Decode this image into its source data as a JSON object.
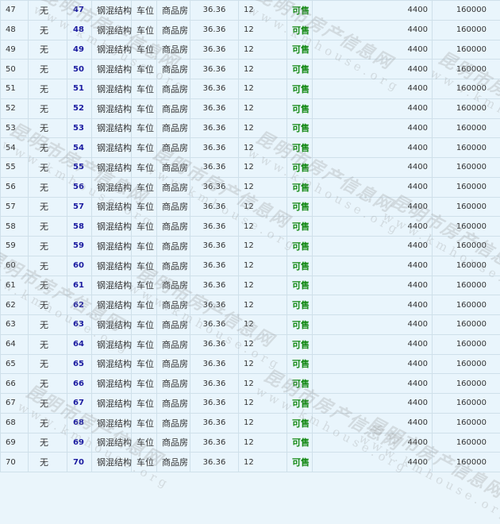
{
  "table": {
    "rows": [
      {
        "no": "47",
        "floor": "无",
        "room": "47",
        "structure": "钢混结构",
        "type": "车位",
        "usage": "商品房",
        "area": "36.36",
        "height": "12",
        "status": "可售",
        "price": "4400",
        "total": "160000"
      },
      {
        "no": "48",
        "floor": "无",
        "room": "48",
        "structure": "钢混结构",
        "type": "车位",
        "usage": "商品房",
        "area": "36.36",
        "height": "12",
        "status": "可售",
        "price": "4400",
        "total": "160000"
      },
      {
        "no": "49",
        "floor": "无",
        "room": "49",
        "structure": "钢混结构",
        "type": "车位",
        "usage": "商品房",
        "area": "36.36",
        "height": "12",
        "status": "可售",
        "price": "4400",
        "total": "160000"
      },
      {
        "no": "50",
        "floor": "无",
        "room": "50",
        "structure": "钢混结构",
        "type": "车位",
        "usage": "商品房",
        "area": "36.36",
        "height": "12",
        "status": "可售",
        "price": "4400",
        "total": "160000"
      },
      {
        "no": "51",
        "floor": "无",
        "room": "51",
        "structure": "钢混结构",
        "type": "车位",
        "usage": "商品房",
        "area": "36.36",
        "height": "12",
        "status": "可售",
        "price": "4400",
        "total": "160000"
      },
      {
        "no": "52",
        "floor": "无",
        "room": "52",
        "structure": "钢混结构",
        "type": "车位",
        "usage": "商品房",
        "area": "36.36",
        "height": "12",
        "status": "可售",
        "price": "4400",
        "total": "160000"
      },
      {
        "no": "53",
        "floor": "无",
        "room": "53",
        "structure": "钢混结构",
        "type": "车位",
        "usage": "商品房",
        "area": "36.36",
        "height": "12",
        "status": "可售",
        "price": "4400",
        "total": "160000"
      },
      {
        "no": "54",
        "floor": "无",
        "room": "54",
        "structure": "钢混结构",
        "type": "车位",
        "usage": "商品房",
        "area": "36.36",
        "height": "12",
        "status": "可售",
        "price": "4400",
        "total": "160000"
      },
      {
        "no": "55",
        "floor": "无",
        "room": "55",
        "structure": "钢混结构",
        "type": "车位",
        "usage": "商品房",
        "area": "36.36",
        "height": "12",
        "status": "可售",
        "price": "4400",
        "total": "160000"
      },
      {
        "no": "56",
        "floor": "无",
        "room": "56",
        "structure": "钢混结构",
        "type": "车位",
        "usage": "商品房",
        "area": "36.36",
        "height": "12",
        "status": "可售",
        "price": "4400",
        "total": "160000"
      },
      {
        "no": "57",
        "floor": "无",
        "room": "57",
        "structure": "钢混结构",
        "type": "车位",
        "usage": "商品房",
        "area": "36.36",
        "height": "12",
        "status": "可售",
        "price": "4400",
        "total": "160000"
      },
      {
        "no": "58",
        "floor": "无",
        "room": "58",
        "structure": "钢混结构",
        "type": "车位",
        "usage": "商品房",
        "area": "36.36",
        "height": "12",
        "status": "可售",
        "price": "4400",
        "total": "160000"
      },
      {
        "no": "59",
        "floor": "无",
        "room": "59",
        "structure": "钢混结构",
        "type": "车位",
        "usage": "商品房",
        "area": "36.36",
        "height": "12",
        "status": "可售",
        "price": "4400",
        "total": "160000"
      },
      {
        "no": "60",
        "floor": "无",
        "room": "60",
        "structure": "钢混结构",
        "type": "车位",
        "usage": "商品房",
        "area": "36.36",
        "height": "12",
        "status": "可售",
        "price": "4400",
        "total": "160000"
      },
      {
        "no": "61",
        "floor": "无",
        "room": "61",
        "structure": "钢混结构",
        "type": "车位",
        "usage": "商品房",
        "area": "36.36",
        "height": "12",
        "status": "可售",
        "price": "4400",
        "total": "160000"
      },
      {
        "no": "62",
        "floor": "无",
        "room": "62",
        "structure": "钢混结构",
        "type": "车位",
        "usage": "商品房",
        "area": "36.36",
        "height": "12",
        "status": "可售",
        "price": "4400",
        "total": "160000"
      },
      {
        "no": "63",
        "floor": "无",
        "room": "63",
        "structure": "钢混结构",
        "type": "车位",
        "usage": "商品房",
        "area": "36.36",
        "height": "12",
        "status": "可售",
        "price": "4400",
        "total": "160000"
      },
      {
        "no": "64",
        "floor": "无",
        "room": "64",
        "structure": "钢混结构",
        "type": "车位",
        "usage": "商品房",
        "area": "36.36",
        "height": "12",
        "status": "可售",
        "price": "4400",
        "total": "160000"
      },
      {
        "no": "65",
        "floor": "无",
        "room": "65",
        "structure": "钢混结构",
        "type": "车位",
        "usage": "商品房",
        "area": "36.36",
        "height": "12",
        "status": "可售",
        "price": "4400",
        "total": "160000"
      },
      {
        "no": "66",
        "floor": "无",
        "room": "66",
        "structure": "钢混结构",
        "type": "车位",
        "usage": "商品房",
        "area": "36.36",
        "height": "12",
        "status": "可售",
        "price": "4400",
        "total": "160000"
      },
      {
        "no": "67",
        "floor": "无",
        "room": "67",
        "structure": "钢混结构",
        "type": "车位",
        "usage": "商品房",
        "area": "36.36",
        "height": "12",
        "status": "可售",
        "price": "4400",
        "total": "160000"
      },
      {
        "no": "68",
        "floor": "无",
        "room": "68",
        "structure": "钢混结构",
        "type": "车位",
        "usage": "商品房",
        "area": "36.36",
        "height": "12",
        "status": "可售",
        "price": "4400",
        "total": "160000"
      },
      {
        "no": "69",
        "floor": "无",
        "room": "69",
        "structure": "钢混结构",
        "type": "车位",
        "usage": "商品房",
        "area": "36.36",
        "height": "12",
        "status": "可售",
        "price": "4400",
        "total": "160000"
      },
      {
        "no": "70",
        "floor": "无",
        "room": "70",
        "structure": "钢混结构",
        "type": "车位",
        "usage": "商品房",
        "area": "36.36",
        "height": "12",
        "status": "可售",
        "price": "4400",
        "total": "160000"
      }
    ]
  },
  "watermark": {
    "name": "昆明市房产信息网",
    "url": "www.kmhouse.org"
  },
  "colors": {
    "room_link": "#1a1aa0",
    "status_available": "#118811",
    "background": "#e9f5fc"
  }
}
